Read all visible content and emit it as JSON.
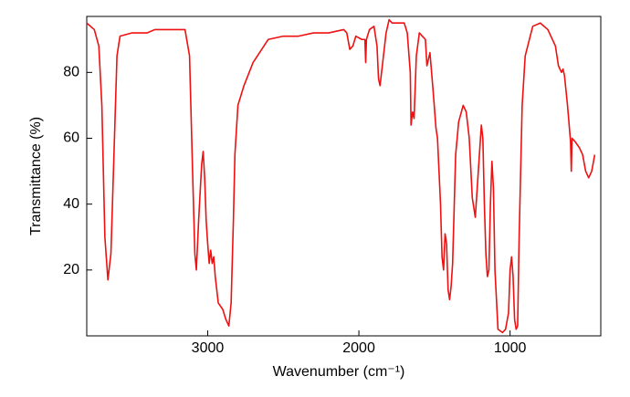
{
  "chart_data": {
    "type": "line",
    "xlabel": "Wavenumber (cm⁻¹)",
    "ylabel": "Transmittance (%)",
    "x_reversed": true,
    "xlim": [
      3800,
      400
    ],
    "ylim": [
      0,
      97
    ],
    "xticks": [
      3000,
      2000,
      1000
    ],
    "yticks": [
      20,
      40,
      60,
      80
    ],
    "series": [
      {
        "color": "#ee1111",
        "x": [
          3800,
          3750,
          3720,
          3700,
          3680,
          3660,
          3640,
          3620,
          3600,
          3580,
          3500,
          3400,
          3350,
          3200,
          3150,
          3120,
          3100,
          3085,
          3075,
          3060,
          3040,
          3030,
          3020,
          3010,
          3000,
          2990,
          2980,
          2970,
          2960,
          2950,
          2930,
          2900,
          2880,
          2860,
          2845,
          2830,
          2820,
          2800,
          2760,
          2700,
          2600,
          2500,
          2400,
          2300,
          2200,
          2100,
          2080,
          2060,
          2040,
          2020,
          1980,
          1960,
          1955,
          1950,
          1930,
          1900,
          1880,
          1870,
          1860,
          1850,
          1820,
          1800,
          1780,
          1700,
          1680,
          1660,
          1655,
          1645,
          1635,
          1620,
          1600,
          1580,
          1560,
          1550,
          1530,
          1510,
          1490,
          1480,
          1460,
          1450,
          1440,
          1430,
          1420,
          1410,
          1400,
          1390,
          1380,
          1360,
          1340,
          1310,
          1290,
          1270,
          1250,
          1230,
          1210,
          1190,
          1180,
          1170,
          1160,
          1150,
          1140,
          1130,
          1120,
          1110,
          1100,
          1080,
          1050,
          1030,
          1010,
          1000,
          990,
          980,
          970,
          960,
          950,
          940,
          920,
          900,
          850,
          800,
          750,
          700,
          680,
          660,
          650,
          640,
          620,
          600,
          595,
          590,
          570,
          540,
          520,
          500,
          480,
          460,
          440
        ],
        "values": [
          95,
          93,
          88,
          70,
          30,
          17,
          25,
          55,
          85,
          91,
          92,
          92,
          93,
          93,
          93,
          85,
          50,
          25,
          20,
          35,
          52,
          56,
          48,
          35,
          28,
          22,
          26,
          22,
          24,
          18,
          10,
          8,
          5,
          3,
          10,
          35,
          55,
          70,
          76,
          83,
          90,
          91,
          91,
          92,
          92,
          93,
          92,
          87,
          88,
          91,
          90,
          90,
          83,
          90,
          93,
          94,
          88,
          78,
          76,
          80,
          92,
          96,
          95,
          95,
          92,
          80,
          64,
          68,
          66,
          85,
          92,
          91,
          90,
          82,
          86,
          75,
          63,
          60,
          40,
          24,
          20,
          31,
          28,
          14,
          11,
          15,
          22,
          55,
          65,
          70,
          68,
          60,
          42,
          36,
          50,
          64,
          60,
          40,
          25,
          18,
          20,
          40,
          53,
          45,
          20,
          2,
          1,
          2,
          7,
          20,
          24,
          18,
          5,
          2,
          3,
          30,
          70,
          85,
          94,
          95,
          93,
          88,
          82,
          80,
          81,
          79,
          70,
          59,
          50,
          60,
          59,
          57,
          55,
          50,
          48,
          50,
          55
        ]
      }
    ]
  }
}
